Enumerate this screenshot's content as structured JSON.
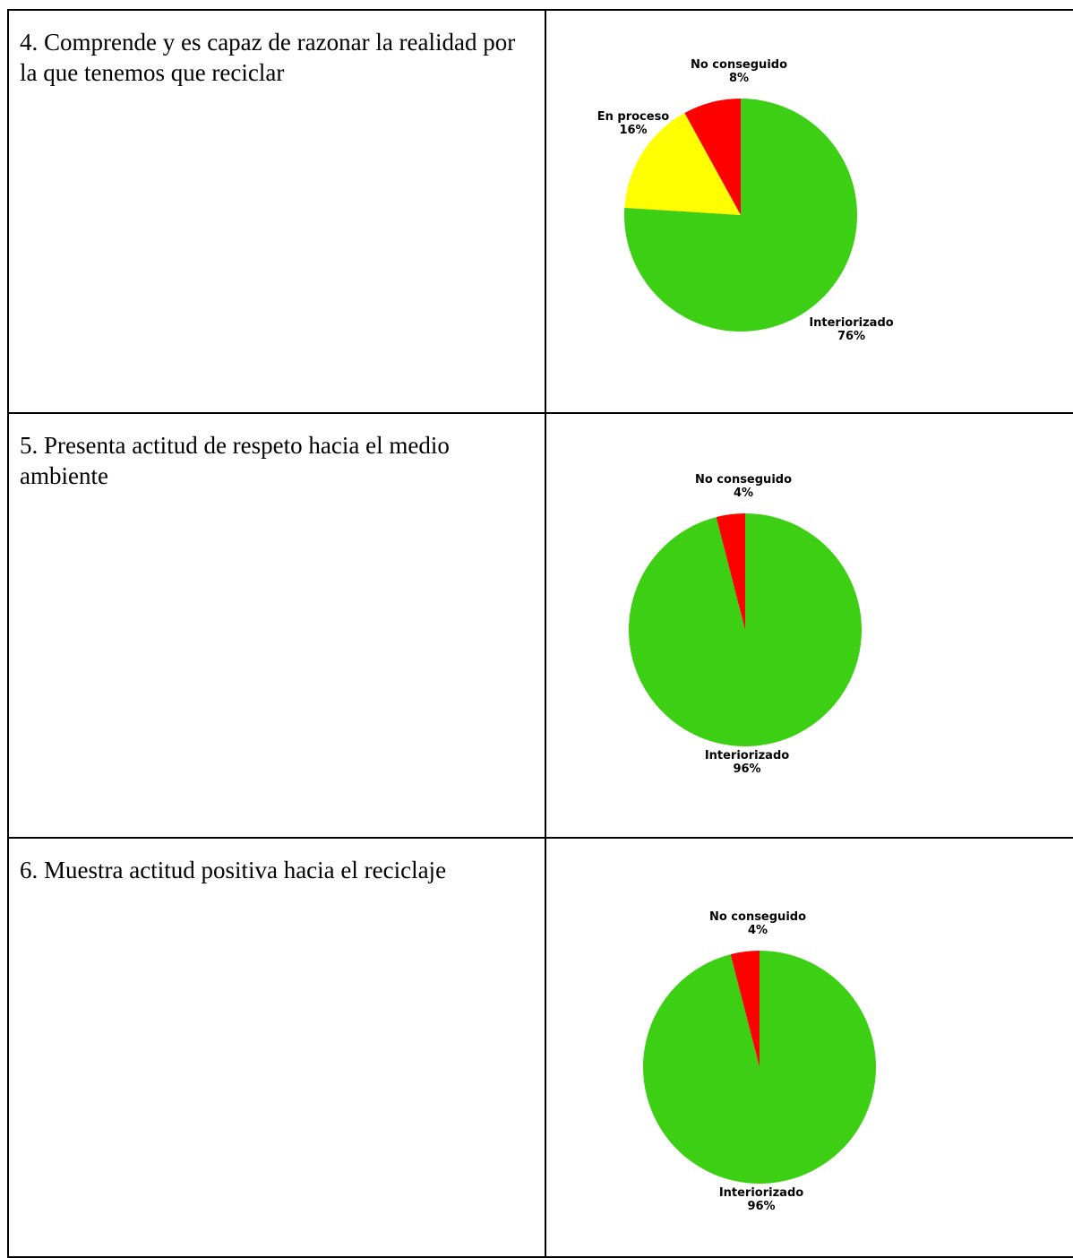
{
  "rows": [
    {
      "criterion": "4. Comprende y es capaz de razonar la realidad por la que tenemos que reciclar",
      "chart_data": {
        "type": "pie",
        "slices": [
          {
            "label": "Interiorizado",
            "value": 76,
            "value_label": "76%",
            "color": "#3ccf14"
          },
          {
            "label": "En proceso",
            "value": 16,
            "value_label": "16%",
            "color": "#ffff00"
          },
          {
            "label": "No conseguido",
            "value": 8,
            "value_label": "8%",
            "color": "#ff0000"
          }
        ]
      }
    },
    {
      "criterion": "5. Presenta actitud de respeto hacia el medio ambiente",
      "chart_data": {
        "type": "pie",
        "slices": [
          {
            "label": "Interiorizado",
            "value": 96,
            "value_label": "96%",
            "color": "#3ccf14"
          },
          {
            "label": "No conseguido",
            "value": 4,
            "value_label": "4%",
            "color": "#ff0000"
          }
        ]
      }
    },
    {
      "criterion": "6. Muestra actitud positiva hacia el reciclaje",
      "chart_data": {
        "type": "pie",
        "slices": [
          {
            "label": "Interiorizado",
            "value": 96,
            "value_label": "96%",
            "color": "#3ccf14"
          },
          {
            "label": "No conseguido",
            "value": 4,
            "value_label": "4%",
            "color": "#ff0000"
          }
        ]
      }
    }
  ]
}
